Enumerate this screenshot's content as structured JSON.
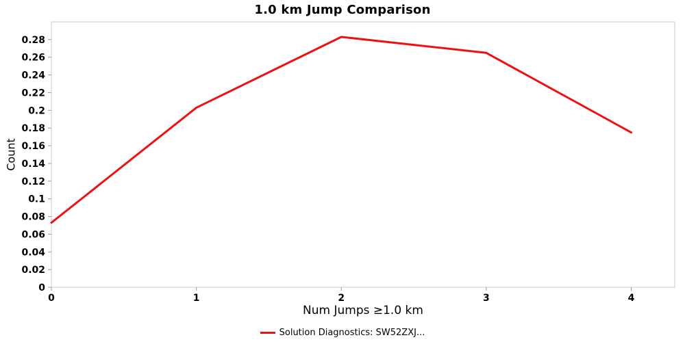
{
  "chart_data": {
    "type": "line",
    "title": "1.0 km Jump Comparison",
    "xlabel": "Num Jumps ≥1.0 km",
    "ylabel": "Count",
    "x": [
      0,
      1,
      2,
      3,
      4
    ],
    "series": [
      {
        "name": "Solution Diagnostics: SW52ZXJ...",
        "color": "#ee1111",
        "values": [
          0.073,
          0.203,
          0.283,
          0.265,
          0.175
        ]
      }
    ],
    "xlim": [
      0,
      4.3
    ],
    "ylim": [
      0,
      0.3
    ],
    "xticks": [
      0,
      1,
      2,
      3,
      4
    ],
    "ytick_step": 0.02,
    "ytick_max": 0.28,
    "grid": false,
    "legend_position": "bottom"
  },
  "colors": {
    "line": "#ee1111",
    "plot_border": "#c9c9c9",
    "tick": "#9a9a9a",
    "text": "#000000",
    "background": "#ffffff"
  }
}
